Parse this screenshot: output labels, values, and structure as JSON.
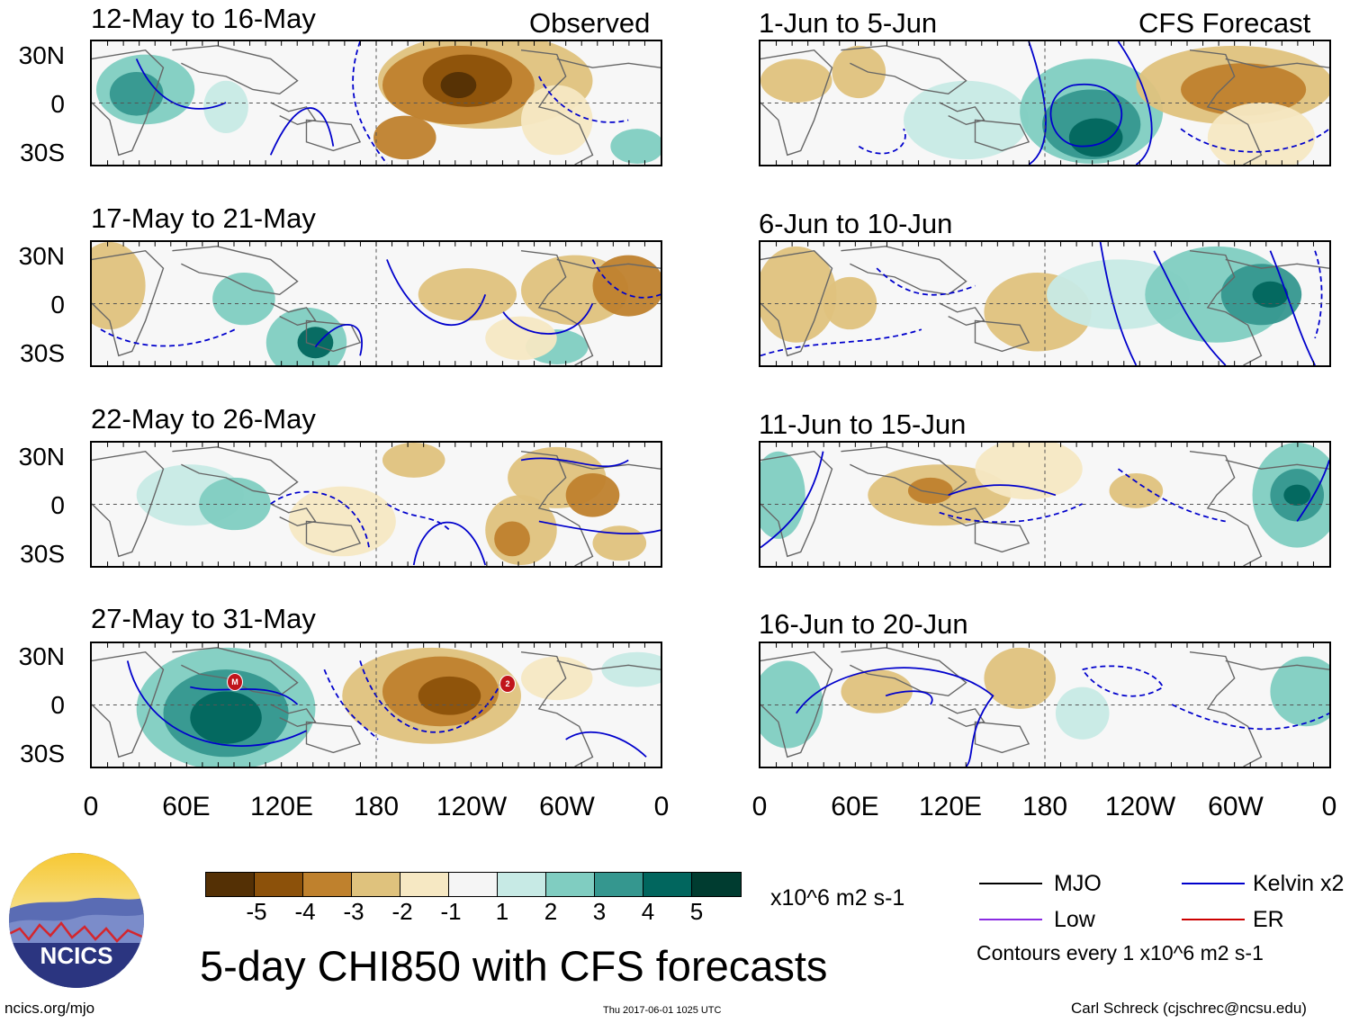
{
  "title": "5-day CHI850 with CFS forecasts",
  "left_header": "Observed",
  "right_header": "CFS Forecast",
  "lat_labels": [
    "30N",
    "0",
    "30S"
  ],
  "lon_labels": [
    "0",
    "60E",
    "120E",
    "180",
    "120W",
    "60W",
    "0"
  ],
  "panels_observed": [
    {
      "period": "12-May to 16-May"
    },
    {
      "period": "17-May to 21-May"
    },
    {
      "period": "22-May to 26-May"
    },
    {
      "period": "27-May to 31-May"
    }
  ],
  "panels_forecast": [
    {
      "period": "1-Jun to 5-Jun"
    },
    {
      "period": "6-Jun to 10-Jun"
    },
    {
      "period": "11-Jun to 15-Jun"
    },
    {
      "period": "16-Jun to 20-Jun"
    }
  ],
  "storm_markers": [
    "M",
    "2"
  ],
  "colorbar": {
    "labels": [
      "-5",
      "-4",
      "-3",
      "-2",
      "-1",
      "1",
      "2",
      "3",
      "4",
      "5"
    ],
    "colors": [
      "#543005",
      "#8c510a",
      "#bf812d",
      "#dfc27d",
      "#f6e8c3",
      "#f5f5f5",
      "#c7eae5",
      "#80cdc1",
      "#35978f",
      "#01665e",
      "#003c30"
    ],
    "units": "x10^6 m2 s-1"
  },
  "legend": {
    "mjo": "MJO",
    "low": "Low",
    "kelvin": "Kelvin x2",
    "er": "ER",
    "colors": {
      "mjo": "#000000",
      "low": "#8a2be2",
      "kelvin": "#0000cc",
      "er": "#cc0000"
    },
    "contours_note": "Contours every 1 x10^6 m2 s-1"
  },
  "logo_text": "NCICS",
  "footer": {
    "left": "ncics.org/mjo",
    "center": "Thu 2017-06-01 1025 UTC",
    "right": "Carl Schreck (cjschrec@ncsu.edu)"
  }
}
